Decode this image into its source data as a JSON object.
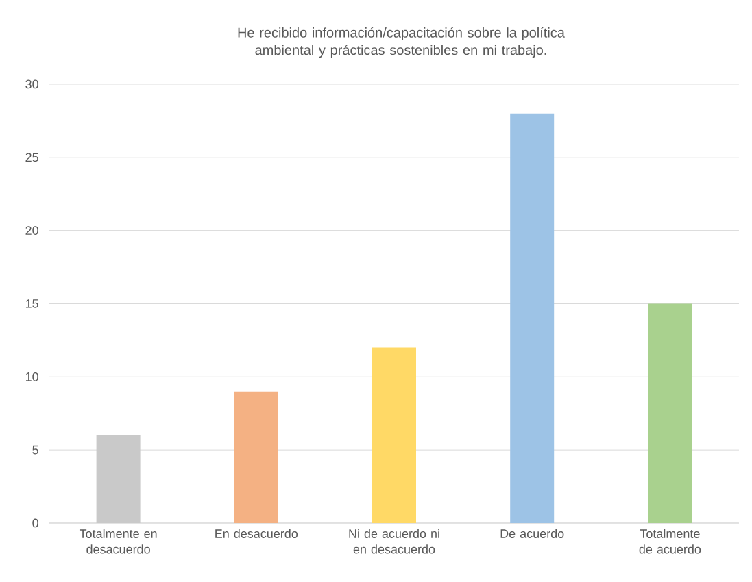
{
  "chart_data": {
    "type": "bar",
    "title": "He recibido información/capacitación sobre la política ambiental y prácticas sostenibles en mi trabajo.",
    "categories": [
      "Totalmente en desacuerdo",
      "En desacuerdo",
      "Ni de acuerdo ni en desacuerdo",
      "De acuerdo",
      "Totalmente de acuerdo"
    ],
    "values": [
      6,
      9,
      12,
      28,
      15
    ],
    "colors": [
      "#c9c9c9",
      "#f4b183",
      "#ffd966",
      "#9dc3e6",
      "#a9d18e"
    ],
    "ylim": [
      0,
      30
    ],
    "yticks": [
      0,
      5,
      10,
      15,
      20,
      25,
      30
    ],
    "grid": "y"
  }
}
